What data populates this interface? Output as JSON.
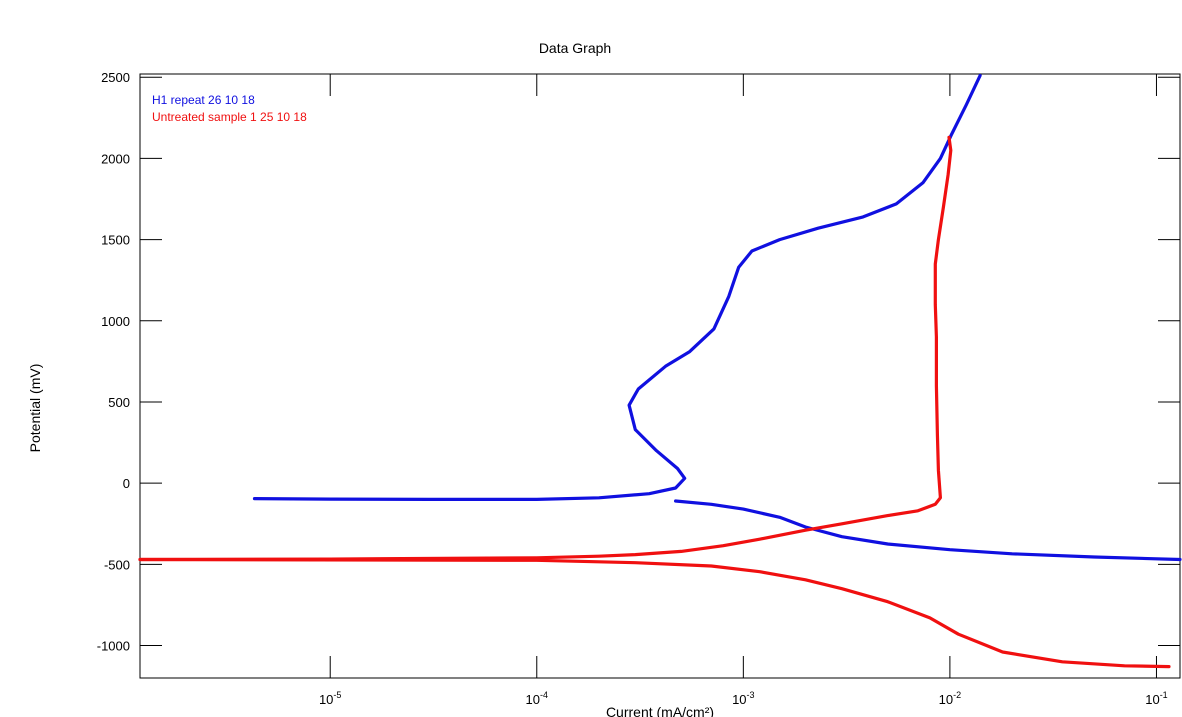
{
  "chart_data": {
    "type": "line",
    "title": "Data Graph",
    "xlabel": "Current (mA/cm²)",
    "ylabel": "Potential (mV)",
    "x_scale": "log",
    "xlim": [
      1.2e-06,
      0.13
    ],
    "ylim": [
      -1200,
      2520
    ],
    "x_ticks": [
      {
        "value": 1e-05,
        "base": "10",
        "exp": "-5"
      },
      {
        "value": 0.0001,
        "base": "10",
        "exp": "-4"
      },
      {
        "value": 0.001,
        "base": "10",
        "exp": "-3"
      },
      {
        "value": 0.01,
        "base": "10",
        "exp": "-2"
      },
      {
        "value": 0.1,
        "base": "10",
        "exp": "-1"
      }
    ],
    "y_ticks": [
      {
        "value": -1000,
        "label": "-1000"
      },
      {
        "value": -500,
        "label": "-500"
      },
      {
        "value": 0,
        "label": "0"
      },
      {
        "value": 500,
        "label": "500"
      },
      {
        "value": 1000,
        "label": "1000"
      },
      {
        "value": 1500,
        "label": "1500"
      },
      {
        "value": 2000,
        "label": "2000"
      },
      {
        "value": 2500,
        "label": "2500"
      }
    ],
    "legend_position": "top-left",
    "series": [
      {
        "name": "H1 repeat 26 10 18",
        "color": "#1010e0",
        "points": [
          [
            4.3e-06,
            -95
          ],
          [
            1e-05,
            -98
          ],
          [
            3e-05,
            -100
          ],
          [
            0.0001,
            -100
          ],
          [
            0.0002,
            -90
          ],
          [
            0.00035,
            -65
          ],
          [
            0.00047,
            -30
          ],
          [
            0.00052,
            30
          ],
          [
            0.00048,
            90
          ],
          [
            0.00038,
            200
          ],
          [
            0.0003,
            330
          ],
          [
            0.00028,
            480
          ],
          [
            0.00031,
            580
          ],
          [
            0.00042,
            720
          ],
          [
            0.00055,
            810
          ],
          [
            0.00072,
            950
          ],
          [
            0.00085,
            1150
          ],
          [
            0.00095,
            1330
          ],
          [
            0.0011,
            1430
          ],
          [
            0.0015,
            1500
          ],
          [
            0.0023,
            1570
          ],
          [
            0.0038,
            1640
          ],
          [
            0.0055,
            1720
          ],
          [
            0.0074,
            1850
          ],
          [
            0.009,
            2000
          ],
          [
            0.0102,
            2150
          ],
          [
            0.012,
            2330
          ],
          [
            0.014,
            2510
          ]
        ]
      },
      {
        "name": "H1 repeat 26 10 18",
        "color": "#1010e0",
        "points": [
          [
            0.00047,
            -110
          ],
          [
            0.0007,
            -130
          ],
          [
            0.001,
            -160
          ],
          [
            0.0015,
            -210
          ],
          [
            0.002,
            -270
          ],
          [
            0.003,
            -330
          ],
          [
            0.005,
            -375
          ],
          [
            0.01,
            -410
          ],
          [
            0.02,
            -435
          ],
          [
            0.05,
            -455
          ],
          [
            0.13,
            -470
          ]
        ]
      },
      {
        "name": "Untreated sample 1 25 10 18",
        "color": "#f01010",
        "points": [
          [
            1.2e-06,
            -470
          ],
          [
            1e-05,
            -468
          ],
          [
            0.0001,
            -460
          ],
          [
            0.0002,
            -450
          ],
          [
            0.0003,
            -440
          ],
          [
            0.0005,
            -420
          ],
          [
            0.0008,
            -385
          ],
          [
            0.0012,
            -345
          ],
          [
            0.002,
            -290
          ],
          [
            0.003,
            -250
          ],
          [
            0.005,
            -200
          ],
          [
            0.007,
            -170
          ],
          [
            0.0085,
            -130
          ],
          [
            0.009,
            -90
          ],
          [
            0.0088,
            80
          ],
          [
            0.0087,
            300
          ],
          [
            0.0086,
            600
          ],
          [
            0.0086,
            900
          ],
          [
            0.0085,
            1100
          ],
          [
            0.0085,
            1350
          ],
          [
            0.0088,
            1500
          ],
          [
            0.0093,
            1700
          ],
          [
            0.0098,
            1900
          ],
          [
            0.0101,
            2050
          ],
          [
            0.0099,
            2130
          ]
        ]
      },
      {
        "name": "Untreated sample 1 25 10 18",
        "color": "#f01010",
        "points": [
          [
            1.2e-06,
            -470
          ],
          [
            0.0001,
            -475
          ],
          [
            0.0003,
            -490
          ],
          [
            0.0007,
            -510
          ],
          [
            0.0012,
            -545
          ],
          [
            0.002,
            -595
          ],
          [
            0.003,
            -650
          ],
          [
            0.005,
            -730
          ],
          [
            0.008,
            -830
          ],
          [
            0.011,
            -930
          ],
          [
            0.018,
            -1040
          ],
          [
            0.035,
            -1100
          ],
          [
            0.07,
            -1125
          ],
          [
            0.115,
            -1130
          ]
        ]
      }
    ]
  },
  "legend": {
    "items": [
      {
        "label": "H1 repeat 26 10 18",
        "color": "#1010e0"
      },
      {
        "label": "Untreated sample 1 25 10 18",
        "color": "#f01010"
      }
    ]
  }
}
